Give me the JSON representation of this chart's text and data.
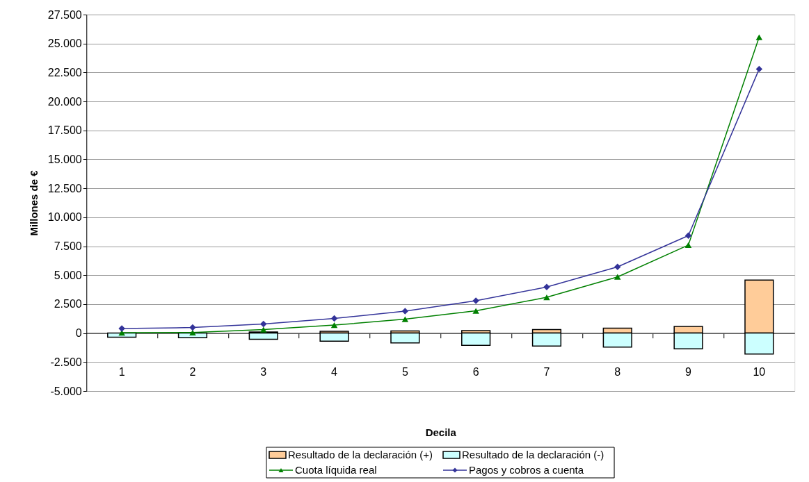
{
  "chart_data": {
    "type": "bar",
    "xlabel": "Decila",
    "ylabel": "Millones de €",
    "categories": [
      "1",
      "2",
      "3",
      "4",
      "5",
      "6",
      "7",
      "8",
      "9",
      "10"
    ],
    "stacked": true,
    "series": [
      {
        "name": "Resultado de la declaración (+)",
        "color": "#ffcc99",
        "values": [
          null,
          null,
          90,
          150,
          190,
          220,
          310,
          430,
          570,
          4580
        ]
      },
      {
        "name": "Resultado de la declaración (-)",
        "color": "#ccffff",
        "values": [
          -350,
          -400,
          -530,
          -700,
          -850,
          -1060,
          -1120,
          -1200,
          -1360,
          -1810
        ]
      },
      {
        "name": "Cuota líquida real",
        "type": "line",
        "marker": "triangle",
        "color": "#008000",
        "values": [
          30,
          50,
          300,
          690,
          1200,
          1920,
          3090,
          4850,
          7600,
          25550
        ]
      },
      {
        "name": "Pagos y cobros a cuenta",
        "type": "line",
        "marker": "diamond",
        "color": "#333399",
        "values": [
          400,
          480,
          780,
          1260,
          1890,
          2790,
          3980,
          5720,
          8420,
          22800
        ]
      }
    ],
    "ylim": [
      -5000,
      27500
    ],
    "yticks": [
      {
        "value": -5000,
        "label": "-5.000"
      },
      {
        "value": -2500,
        "label": "-2.500"
      },
      0,
      {
        "value": 2500,
        "label": "2.500"
      },
      {
        "value": 5000,
        "label": "5.000"
      },
      {
        "value": 7500,
        "label": "7.500"
      },
      {
        "value": 10000,
        "label": "10.000"
      },
      {
        "value": 12500,
        "label": "12.500"
      },
      {
        "value": 15000,
        "label": "15.000"
      },
      {
        "value": 17500,
        "label": "17.500"
      },
      {
        "value": 20000,
        "label": "20.000"
      },
      {
        "value": 22500,
        "label": "22.500"
      },
      {
        "value": 25000,
        "label": "25.000"
      },
      {
        "value": 27500,
        "label": "27.500"
      }
    ],
    "grid": "y",
    "legend": "bottom"
  }
}
